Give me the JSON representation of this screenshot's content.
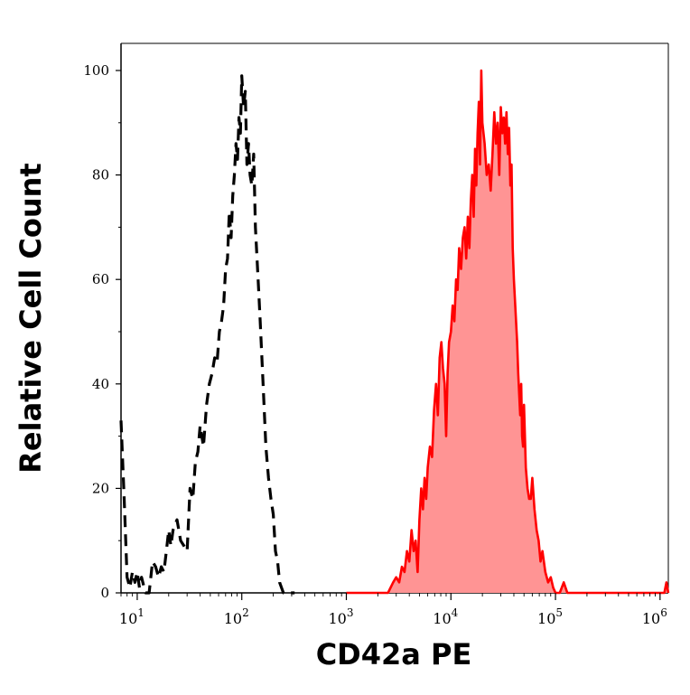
{
  "chart_data": {
    "type": "area",
    "xlabel": "CD42a PE",
    "ylabel": "Relative Cell Count",
    "x_scale": "log",
    "xlim": [
      7,
      1200000
    ],
    "ylim": [
      0,
      100
    ],
    "x_ticks": [
      {
        "value": 10,
        "base": "10",
        "exp": "1"
      },
      {
        "value": 100,
        "base": "10",
        "exp": "2"
      },
      {
        "value": 1000,
        "base": "10",
        "exp": "3"
      },
      {
        "value": 10000,
        "base": "10",
        "exp": "4"
      },
      {
        "value": 100000,
        "base": "10",
        "exp": "5"
      },
      {
        "value": 1000000,
        "base": "10",
        "exp": "6"
      }
    ],
    "y_ticks": [
      "0",
      "20",
      "40",
      "60",
      "80",
      "100"
    ],
    "grid": false,
    "legend": "none",
    "series": [
      {
        "style": "dashed-line",
        "color": "#000000",
        "x": [
          7,
          7.5,
          8,
          8.5,
          9,
          9.5,
          10,
          10.5,
          11,
          12,
          13,
          14,
          15,
          16,
          17,
          18,
          19,
          20,
          21,
          22,
          24,
          26,
          28,
          30,
          32,
          34,
          36,
          38,
          40,
          43,
          46,
          49,
          52,
          55,
          58,
          61,
          64,
          67,
          70,
          73,
          76,
          79,
          82,
          85,
          88,
          91,
          94,
          97,
          100,
          104,
          108,
          112,
          116,
          120,
          125,
          130,
          135,
          140,
          145,
          150,
          160,
          170,
          180,
          190,
          200,
          210,
          220,
          230,
          250,
          280,
          320
        ],
        "values": [
          33,
          18,
          3,
          1,
          4,
          2,
          4,
          1,
          3,
          0,
          0,
          6,
          5,
          3,
          5,
          4,
          8,
          12,
          9,
          12,
          14,
          10,
          9,
          8,
          20,
          18,
          25,
          27,
          32,
          28,
          36,
          40,
          42,
          45,
          44,
          50,
          52,
          55,
          62,
          64,
          73,
          68,
          76,
          80,
          86,
          83,
          91,
          88,
          99,
          93,
          96,
          82,
          86,
          80,
          78,
          84,
          70,
          64,
          58,
          52,
          40,
          28,
          22,
          18,
          15,
          8,
          6,
          2,
          0,
          0,
          0
        ]
      },
      {
        "style": "filled-area",
        "color": "#ff0000",
        "fill": "#ff9494",
        "x": [
          1000,
          2000,
          2500,
          2800,
          3000,
          3200,
          3400,
          3600,
          3800,
          4000,
          4200,
          4400,
          4600,
          4800,
          5000,
          5200,
          5400,
          5600,
          5800,
          6000,
          6300,
          6600,
          6900,
          7200,
          7500,
          7800,
          8100,
          8400,
          8700,
          9000,
          9300,
          9600,
          10000,
          10400,
          10800,
          11200,
          11600,
          12000,
          12500,
          13000,
          13500,
          14000,
          14500,
          15000,
          15500,
          16000,
          16500,
          17000,
          17500,
          18000,
          18500,
          19000,
          19500,
          20000,
          21000,
          22000,
          23000,
          24000,
          25000,
          26000,
          27000,
          28000,
          29000,
          30000,
          31000,
          32000,
          33000,
          34000,
          35000,
          36000,
          37000,
          38000,
          39000,
          40000,
          41000,
          42000,
          43000,
          44000,
          45000,
          46000,
          47000,
          48000,
          49000,
          50000,
          52000,
          54000,
          56000,
          58000,
          60000,
          63000,
          66000,
          69000,
          72000,
          75000,
          80000,
          85000,
          90000,
          95000,
          100000,
          110000,
          120000,
          130000,
          140000,
          150000,
          170000,
          200000,
          300000,
          500000,
          800000,
          1000000,
          1100000,
          1150000,
          1200000
        ],
        "values": [
          0,
          0,
          0,
          2,
          3,
          2,
          5,
          4,
          8,
          6,
          12,
          8,
          10,
          4,
          14,
          20,
          16,
          22,
          18,
          24,
          28,
          26,
          35,
          40,
          34,
          45,
          48,
          43,
          40,
          30,
          42,
          48,
          50,
          55,
          52,
          60,
          58,
          66,
          62,
          68,
          70,
          64,
          72,
          66,
          75,
          80,
          72,
          85,
          78,
          88,
          94,
          82,
          100,
          90,
          86,
          80,
          82,
          77,
          84,
          92,
          86,
          90,
          80,
          93,
          88,
          91,
          86,
          92,
          84,
          89,
          78,
          82,
          66,
          60,
          56,
          52,
          48,
          42,
          38,
          34,
          40,
          30,
          28,
          36,
          24,
          20,
          18,
          18,
          22,
          16,
          12,
          10,
          6,
          8,
          4,
          2,
          3,
          1,
          0,
          0,
          2,
          0,
          0,
          0,
          0,
          0,
          0,
          0,
          0,
          0,
          0,
          2,
          0
        ]
      }
    ]
  }
}
